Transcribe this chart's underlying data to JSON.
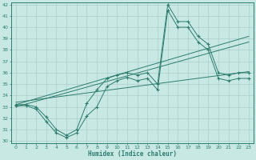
{
  "title": "",
  "xlabel": "Humidex (Indice chaleur)",
  "xlim": [
    0,
    23
  ],
  "ylim": [
    30,
    42
  ],
  "xticks": [
    0,
    1,
    2,
    3,
    4,
    5,
    6,
    7,
    8,
    9,
    10,
    11,
    12,
    13,
    14,
    15,
    16,
    17,
    18,
    19,
    20,
    21,
    22,
    23
  ],
  "yticks": [
    30,
    31,
    32,
    33,
    34,
    35,
    36,
    37,
    38,
    39,
    40,
    41,
    42
  ],
  "background_color": "#c8e8e4",
  "line_color": "#2e7d6e",
  "grid_color": "#aacece",
  "series_main": [
    {
      "x": [
        0,
        1,
        2,
        3,
        4,
        5,
        6,
        7,
        8,
        9,
        10,
        11,
        12,
        13,
        14,
        15,
        16,
        17,
        18,
        19,
        20,
        21,
        22,
        23
      ],
      "y": [
        33.2,
        33.2,
        33.0,
        32.1,
        31.0,
        30.5,
        31.0,
        33.3,
        34.5,
        35.5,
        35.8,
        36.0,
        35.8,
        36.0,
        35.0,
        42.0,
        40.5,
        40.5,
        39.2,
        38.5,
        36.0,
        35.8,
        36.0,
        36.0
      ]
    },
    {
      "x": [
        0,
        1,
        2,
        3,
        4,
        5,
        6,
        7,
        8,
        9,
        10,
        11,
        12,
        13,
        14,
        15,
        16,
        17,
        18,
        19,
        20,
        21,
        22,
        23
      ],
      "y": [
        33.1,
        33.1,
        32.8,
        31.7,
        30.7,
        30.3,
        30.7,
        32.2,
        33.0,
        34.8,
        35.3,
        35.6,
        35.3,
        35.5,
        34.5,
        41.5,
        40.0,
        40.0,
        38.7,
        38.0,
        35.5,
        35.3,
        35.5,
        35.5
      ]
    }
  ],
  "series_linear": [
    {
      "x": [
        0,
        23
      ],
      "y": [
        33.2,
        39.2
      ]
    },
    {
      "x": [
        0,
        23
      ],
      "y": [
        33.0,
        38.7
      ]
    },
    {
      "x": [
        0,
        23
      ],
      "y": [
        33.4,
        36.1
      ]
    }
  ]
}
